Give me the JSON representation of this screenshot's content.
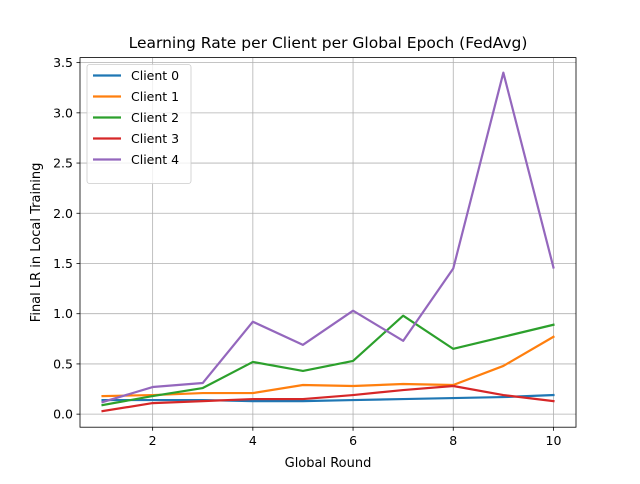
{
  "chart_data": {
    "type": "line",
    "title": "Learning Rate per Client per Global Epoch (FedAvg)",
    "xlabel": "Global Round",
    "ylabel": "Final LR in Local Training",
    "x": [
      1,
      2,
      3,
      4,
      5,
      6,
      7,
      8,
      9,
      10
    ],
    "xlim": [
      0.55,
      10.45
    ],
    "ylim": [
      -0.13,
      3.55
    ],
    "xticks": [
      2,
      4,
      6,
      8,
      10
    ],
    "xtick_labels": [
      "2",
      "4",
      "6",
      "8",
      "10"
    ],
    "yticks": [
      0.0,
      0.5,
      1.0,
      1.5,
      2.0,
      2.5,
      3.0,
      3.5
    ],
    "ytick_labels": [
      "0.0",
      "0.5",
      "1.0",
      "1.5",
      "2.0",
      "2.5",
      "3.0",
      "3.5"
    ],
    "grid": true,
    "legend_position": "top-left",
    "series": [
      {
        "name": "Client 0",
        "color": "#1f77b4",
        "values": [
          0.14,
          0.14,
          0.14,
          0.13,
          0.13,
          0.14,
          0.15,
          0.16,
          0.17,
          0.19
        ]
      },
      {
        "name": "Client 1",
        "color": "#ff7f0e",
        "values": [
          0.18,
          0.19,
          0.21,
          0.21,
          0.29,
          0.28,
          0.3,
          0.29,
          0.48,
          0.77
        ]
      },
      {
        "name": "Client 2",
        "color": "#2ca02c",
        "values": [
          0.09,
          0.18,
          0.26,
          0.52,
          0.43,
          0.53,
          0.98,
          0.65,
          0.77,
          0.89
        ]
      },
      {
        "name": "Client 3",
        "color": "#d62728",
        "values": [
          0.03,
          0.11,
          0.13,
          0.15,
          0.15,
          0.19,
          0.24,
          0.28,
          0.19,
          0.13
        ]
      },
      {
        "name": "Client 4",
        "color": "#9467bd",
        "values": [
          0.12,
          0.27,
          0.31,
          0.92,
          0.69,
          1.03,
          0.73,
          1.45,
          3.4,
          1.46
        ]
      }
    ]
  }
}
